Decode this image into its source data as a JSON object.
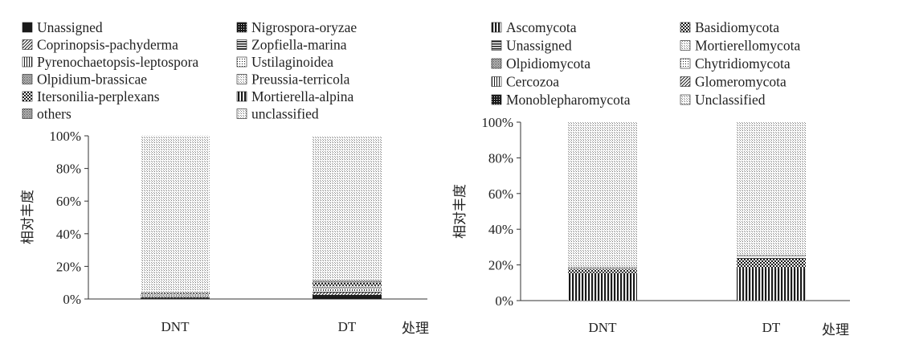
{
  "colors": {
    "ink": "#1a1a1a",
    "axis": "#333333",
    "text": "#222222"
  },
  "chart_data": [
    {
      "type": "bar",
      "stacked": true,
      "categories": [
        "DNT",
        "DT"
      ],
      "xlabel": "处理",
      "ylabel": "相对丰度",
      "ylim": [
        0,
        100
      ],
      "yticks": [
        "0%",
        "20%",
        "40%",
        "60%",
        "80%",
        "100%"
      ],
      "grid": false,
      "legend": "top",
      "series": [
        {
          "name": "Unassigned",
          "pattern": "solid",
          "values": [
            0.5,
            1.5
          ]
        },
        {
          "name": "Nigrospora-oryzae",
          "pattern": "dense",
          "values": [
            0.3,
            1.0
          ]
        },
        {
          "name": "Coprinopsis-pachyderma",
          "pattern": "diag",
          "values": [
            0.3,
            1.5
          ]
        },
        {
          "name": "Zopfiella-marina",
          "pattern": "hlines",
          "values": [
            0.3,
            1.0
          ]
        },
        {
          "name": "Pyrenochaetopsis-leptospora",
          "pattern": "vfine",
          "values": [
            0.3,
            1.0
          ]
        },
        {
          "name": "Ustilaginoidea",
          "pattern": "dots",
          "values": [
            0.3,
            0.5
          ]
        },
        {
          "name": "Olpidium-brassicae",
          "pattern": "medium",
          "values": [
            0.5,
            1.0
          ]
        },
        {
          "name": "Preussia-terricola",
          "pattern": "light",
          "values": [
            0.3,
            0.5
          ]
        },
        {
          "name": "Itersonilia-perplexans",
          "pattern": "check",
          "values": [
            0.3,
            1.0
          ]
        },
        {
          "name": "Mortierella-alpina",
          "pattern": "vbars",
          "values": [
            0.3,
            1.0
          ]
        },
        {
          "name": "others",
          "pattern": "medium",
          "values": [
            0.6,
            1.5
          ]
        },
        {
          "name": "unclassified",
          "pattern": "light",
          "values": [
            96.1,
            88.5
          ]
        }
      ]
    },
    {
      "type": "bar",
      "stacked": true,
      "categories": [
        "DNT",
        "DT"
      ],
      "xlabel": "处理",
      "ylabel": "相对丰度",
      "ylim": [
        0,
        100
      ],
      "yticks": [
        "0%",
        "20%",
        "40%",
        "60%",
        "80%",
        "100%"
      ],
      "grid": false,
      "legend": "top",
      "series": [
        {
          "name": "Ascomycota",
          "pattern": "vbars",
          "values": [
            15.5,
            18
          ]
        },
        {
          "name": "Basidiomycota",
          "pattern": "check",
          "values": [
            2.0,
            5.5
          ]
        },
        {
          "name": "Unassigned",
          "pattern": "hlines",
          "values": [
            0.5,
            0.8
          ]
        },
        {
          "name": "Mortierellomycota",
          "pattern": "light",
          "values": [
            0.2,
            0.3
          ]
        },
        {
          "name": "Olpidiomycota",
          "pattern": "medium",
          "values": [
            0.3,
            0.4
          ]
        },
        {
          "name": "Chytridiomycota",
          "pattern": "dots",
          "values": [
            0.2,
            0.3
          ]
        },
        {
          "name": "Cercozoa",
          "pattern": "vfine",
          "values": [
            0.1,
            0.1
          ]
        },
        {
          "name": "Glomeromycota",
          "pattern": "diag",
          "values": [
            0.1,
            0.1
          ]
        },
        {
          "name": "Monoblepharomycota",
          "pattern": "dense",
          "values": [
            0.1,
            0.1
          ]
        },
        {
          "name": "Unclassified",
          "pattern": "light",
          "values": [
            81.0,
            74.4
          ]
        }
      ]
    }
  ]
}
